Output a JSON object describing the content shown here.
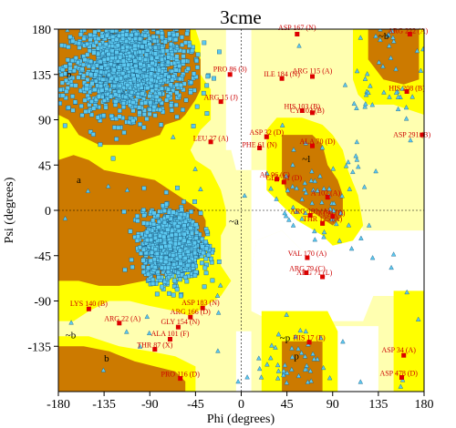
{
  "chart_data": {
    "type": "scatter",
    "title": "3cme",
    "xlabel": "Phi (degrees)",
    "ylabel": "Psi (degrees)",
    "xlim": [
      -180,
      180
    ],
    "ylim": [
      -180,
      180
    ],
    "xticks": [
      "-180",
      "-135",
      "-90",
      "-45",
      "0",
      "45",
      "90",
      "135",
      "180"
    ],
    "yticks": [
      "180",
      "135",
      "90",
      "45",
      "0",
      "-45",
      "-90",
      "-135"
    ],
    "grid": false,
    "colors": {
      "core": "#cc7a00",
      "allowed": "#ffff00",
      "generous": "#ffffb0",
      "background": "#ffffff",
      "general_point": "#5bc8f0",
      "glycine_point": "#5bc8f0",
      "outlier_point": "#dd0000",
      "label_text": "#cc0000"
    },
    "region_labels": [
      {
        "text": "b",
        "x": -172,
        "y": 132
      },
      {
        "text": "a",
        "x": -162,
        "y": 27
      },
      {
        "text": "~b",
        "x": -173,
        "y": -127
      },
      {
        "text": "b",
        "x": -135,
        "y": -150
      },
      {
        "text": "~a",
        "x": -12,
        "y": -14
      },
      {
        "text": "~b",
        "x": 135,
        "y": 170
      },
      {
        "text": "~p",
        "x": 38,
        "y": -130
      },
      {
        "text": "p",
        "x": 52,
        "y": -148
      },
      {
        "text": "~l",
        "x": 60,
        "y": 48
      }
    ],
    "outlier_labels": [
      {
        "text": "ASP 167 (N)",
        "x": 55,
        "y": 179
      },
      {
        "text": "ARG 222 (A)",
        "x": 164,
        "y": 176
      },
      {
        "text": "PRO 86 (3)",
        "x": -11,
        "y": 138
      },
      {
        "text": "ILE 184 (N)",
        "x": 40,
        "y": 133
      },
      {
        "text": "ARG 115 (A)",
        "x": 70,
        "y": 136
      },
      {
        "text": "HIS 208 (B)",
        "x": 163,
        "y": 119
      },
      {
        "text": "ARG 15 (J)",
        "x": -20,
        "y": 110
      },
      {
        "text": "HIS 103 (B)",
        "x": 60,
        "y": 101
      },
      {
        "text": "CY 103 (B)",
        "x": 65,
        "y": 97
      },
      {
        "text": "LEU 27 (A)",
        "x": -30,
        "y": 69
      },
      {
        "text": "ASP 32 (D)",
        "x": 25,
        "y": 75
      },
      {
        "text": "PHE 61 (N)",
        "x": 18,
        "y": 63
      },
      {
        "text": "ALA 70 (D)",
        "x": 75,
        "y": 66
      },
      {
        "text": "ASP 291 (B)",
        "x": 168,
        "y": 73
      },
      {
        "text": "AL 96 (C)",
        "x": 33,
        "y": 33
      },
      {
        "text": "GLU 51 (D)",
        "x": 42,
        "y": 30
      },
      {
        "text": "A 102 (A)",
        "x": 83,
        "y": 15
      },
      {
        "text": "ARG 181 (A)",
        "x": 68,
        "y": -3
      },
      {
        "text": "I 134 (D)",
        "x": 89,
        "y": -5
      },
      {
        "text": "THR 125 (A)",
        "x": 80,
        "y": -11
      },
      {
        "text": "VAL 170 (A)",
        "x": 65,
        "y": -45
      },
      {
        "text": "ARG 79 (C)",
        "x": 65,
        "y": -60
      },
      {
        "text": "ARG 71 (L)",
        "x": 72,
        "y": -64
      },
      {
        "text": "LYS 140 (B)",
        "x": -150,
        "y": -95
      },
      {
        "text": "ARG 22 (A)",
        "x": -117,
        "y": -110
      },
      {
        "text": "ASP 183 (N)",
        "x": -40,
        "y": -94
      },
      {
        "text": "ARG 166 (D)",
        "x": -50,
        "y": -103
      },
      {
        "text": "GLY 154 (N)",
        "x": -60,
        "y": -113
      },
      {
        "text": "ALA 101 (F)",
        "x": -70,
        "y": -125
      },
      {
        "text": "THR 87 (X)",
        "x": -85,
        "y": -136
      },
      {
        "text": "HIS 17 (E)",
        "x": 67,
        "y": -129
      },
      {
        "text": "ASP 34 (A)",
        "x": 155,
        "y": -141
      },
      {
        "text": "PRO 116 (D)",
        "x": -60,
        "y": -165
      },
      {
        "text": "ASP 478 (D)",
        "x": 155,
        "y": -164
      }
    ],
    "outlier_points": [
      [
        55,
        175
      ],
      [
        166,
        175
      ],
      [
        -11,
        135
      ],
      [
        40,
        131
      ],
      [
        70,
        133
      ],
      [
        163,
        118
      ],
      [
        -20,
        108
      ],
      [
        60,
        99
      ],
      [
        70,
        97
      ],
      [
        -30,
        68
      ],
      [
        25,
        73
      ],
      [
        18,
        62
      ],
      [
        70,
        64
      ],
      [
        178,
        75
      ],
      [
        35,
        31
      ],
      [
        42,
        28
      ],
      [
        85,
        13
      ],
      [
        68,
        -5
      ],
      [
        90,
        -6
      ],
      [
        80,
        -13
      ],
      [
        65,
        -47
      ],
      [
        64,
        -62
      ],
      [
        80,
        -66
      ],
      [
        -150,
        -98
      ],
      [
        -120,
        -112
      ],
      [
        -38,
        -97
      ],
      [
        -50,
        -106
      ],
      [
        -62,
        -116
      ],
      [
        -70,
        -128
      ],
      [
        -85,
        -138
      ],
      [
        67,
        -131
      ],
      [
        160,
        -144
      ],
      [
        -60,
        -167
      ],
      [
        158,
        -166
      ]
    ],
    "point_counts": {
      "core_beta": 1500,
      "core_alpha": 1400,
      "scattered": 180
    }
  }
}
